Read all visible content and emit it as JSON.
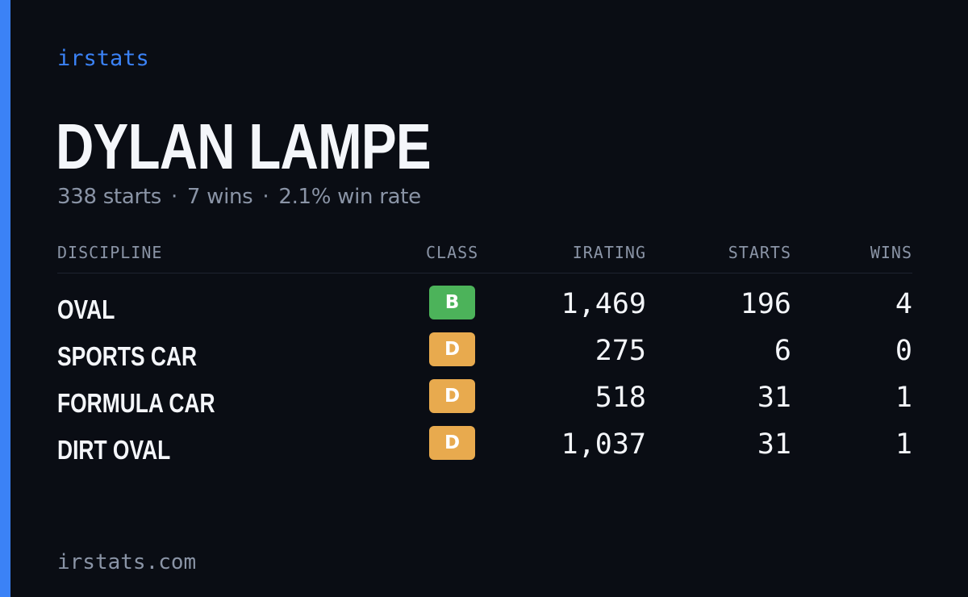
{
  "brand": "irstats",
  "driver": {
    "name": "DYLAN LAMPE",
    "summary": {
      "starts": "338 starts",
      "wins": "7 wins",
      "win_rate": "2.1% win rate",
      "separator": "·"
    }
  },
  "table": {
    "headers": {
      "discipline": "DISCIPLINE",
      "class": "CLASS",
      "irating": "IRATING",
      "starts": "STARTS",
      "wins": "WINS"
    },
    "rows": [
      {
        "discipline": "OVAL",
        "class": "B",
        "class_color": "#4cb35a",
        "irating": "1,469",
        "starts": "196",
        "wins": "4"
      },
      {
        "discipline": "SPORTS CAR",
        "class": "D",
        "class_color": "#e8aa4e",
        "irating": "275",
        "starts": "6",
        "wins": "0"
      },
      {
        "discipline": "FORMULA CAR",
        "class": "D",
        "class_color": "#e8aa4e",
        "irating": "518",
        "starts": "31",
        "wins": "1"
      },
      {
        "discipline": "DIRT OVAL",
        "class": "D",
        "class_color": "#e8aa4e",
        "irating": "1,037",
        "starts": "31",
        "wins": "1"
      }
    ]
  },
  "footer": {
    "url": "irstats.com"
  },
  "colors": {
    "accent": "#3b82f6",
    "background": "#0a0d14",
    "muted": "#8a94a6",
    "text": "#f4f6fa"
  }
}
